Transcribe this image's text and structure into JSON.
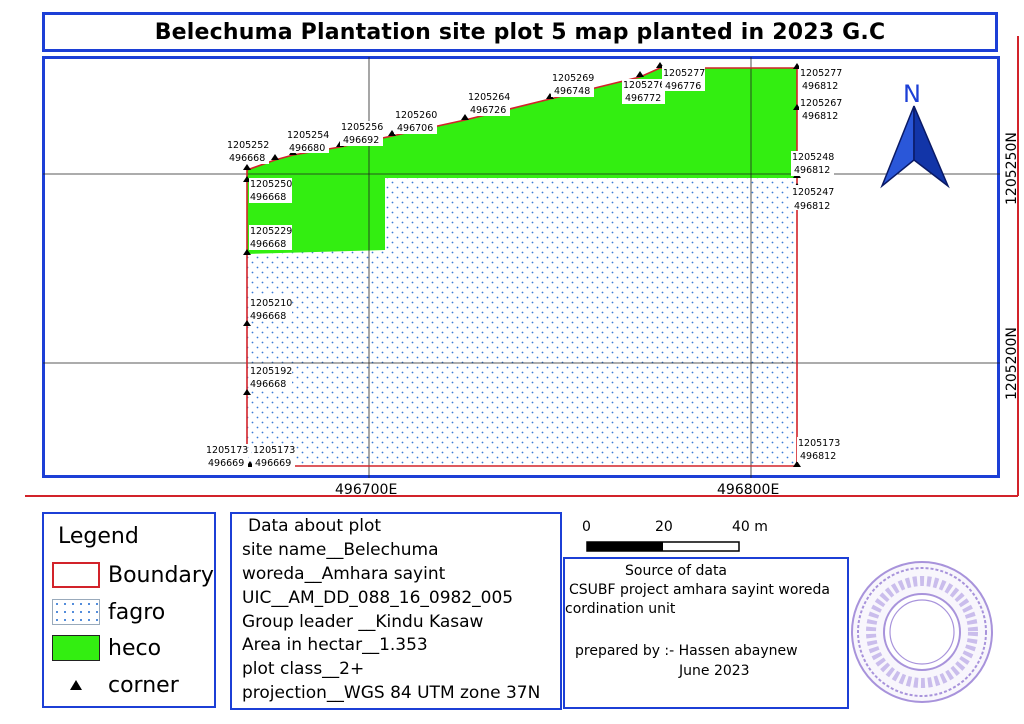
{
  "title": "Belechuma Plantation site plot 5 map planted in 2023 G.C",
  "grid": {
    "easting_labels": [
      "496700E",
      "496800E"
    ],
    "northing_labels": [
      "1205250N",
      "1205200N"
    ]
  },
  "north_arrow": {
    "letter": "N",
    "icon": "north-arrow-icon"
  },
  "corners": [
    {
      "n": "1205252",
      "e": "496668"
    },
    {
      "n": "1205254",
      "e": "496680"
    },
    {
      "n": "1205256",
      "e": "496692"
    },
    {
      "n": "1205260",
      "e": "496706"
    },
    {
      "n": "1205264",
      "e": "496726"
    },
    {
      "n": "1205269",
      "e": "496748"
    },
    {
      "n": "1205276",
      "e": "496772"
    },
    {
      "n": "1205277",
      "e": "496776"
    },
    {
      "n": "1205277",
      "e": "496812"
    },
    {
      "n": "1205267",
      "e": "496812"
    },
    {
      "n": "1205248",
      "e": "496812"
    },
    {
      "n": "1205247",
      "e": "496812"
    },
    {
      "n": "1205173",
      "e": "496812"
    },
    {
      "n": "1205173",
      "e": "496669"
    },
    {
      "n": "1205173",
      "e": "496669"
    },
    {
      "n": "1205192",
      "e": "496668"
    },
    {
      "n": "1205210",
      "e": "496668"
    },
    {
      "n": "1205229",
      "e": "496668"
    },
    {
      "n": "1205250",
      "e": "496668"
    }
  ],
  "legend": {
    "title": "Legend",
    "items": [
      {
        "label": "Boundary",
        "color": "#d2232a"
      },
      {
        "label": "fagro",
        "color": "#3a7bd5"
      },
      {
        "label": "heco",
        "color": "#33ee11"
      },
      {
        "label": "corner",
        "color": "#000000"
      }
    ]
  },
  "plot_data": {
    "heading": "Data about plot",
    "lines": [
      "site name__Belechuma",
      "woreda__Amhara sayint",
      "UIC__AM_DD_088_16_0982_005",
      "Group leader __Kindu Kasaw",
      "Area in hectar__1.353",
      "plot class__2+",
      "projection__WGS 84 UTM zone 37N"
    ]
  },
  "scale_bar": {
    "labels": [
      "0",
      "20",
      "40 m"
    ]
  },
  "source": {
    "heading": "Source of data",
    "line1": "CSUBF project amhara sayint woreda",
    "line2": "cordination unit",
    "prepared": "prepared by :- Hassen abaynew",
    "date": "June 2023"
  },
  "colors": {
    "frame": "#1c3fd6",
    "boundary": "#d2232a",
    "heco": "#33ee11",
    "fagro_dot": "#3a7bd5",
    "stamp": "#7a5cc7"
  }
}
